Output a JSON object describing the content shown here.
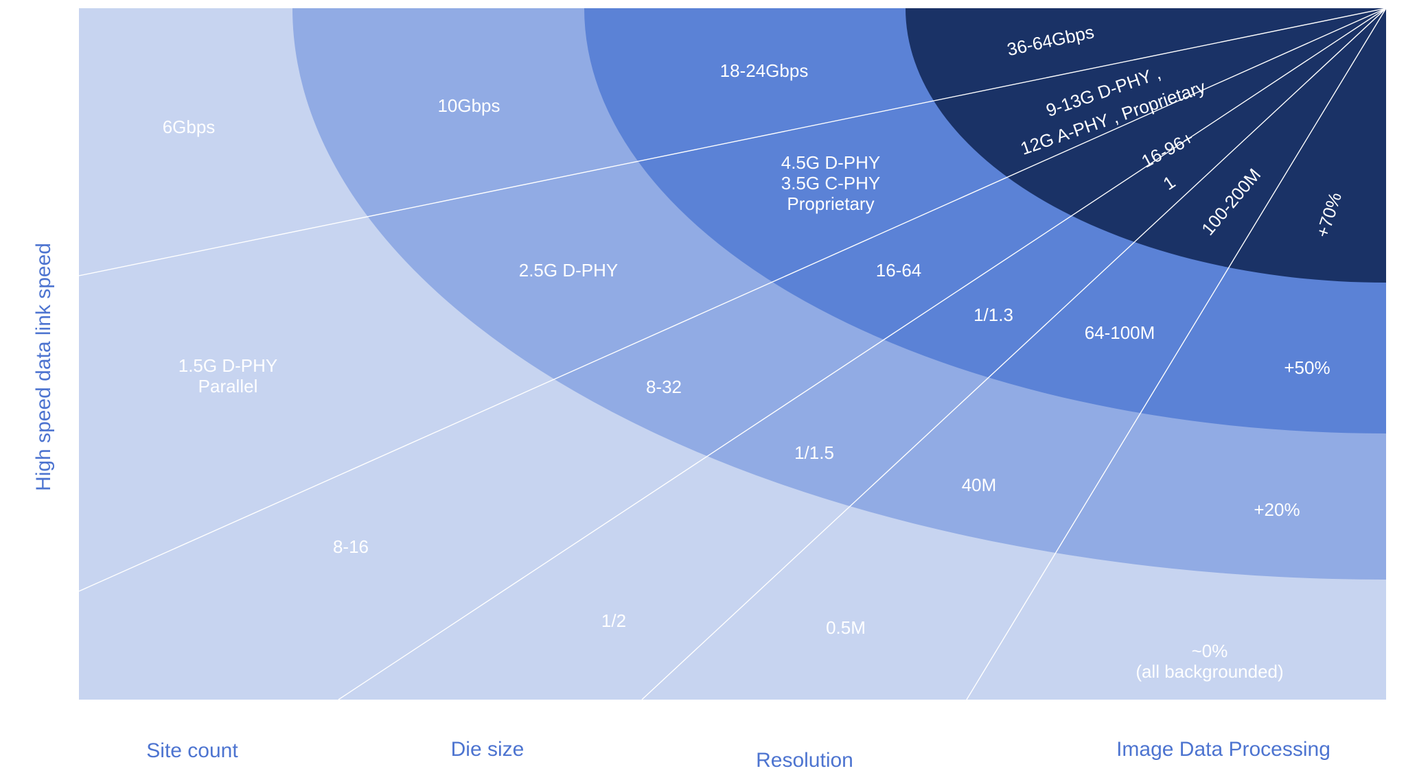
{
  "colors": {
    "ring0": "#c7d4f0",
    "ring1": "#91abe4",
    "ring2": "#5b82d6",
    "ring3": "#1a3266",
    "label": "#ffffff",
    "axis_label": "#4d74d0",
    "ray": "#ffffff"
  },
  "axis_labels": {
    "y": "High speed data link speed",
    "site_count": "Site count",
    "die_size": "Die size",
    "resolution": "Resolution",
    "image_processing": "Image Data Processing"
  },
  "rings": [
    {
      "level": 0,
      "link_speed": "6Gbps",
      "interface": [
        "1.5G D-PHY",
        "Parallel"
      ],
      "site_count": "8-16",
      "die_size": "1/2",
      "resolution": "0.5M",
      "image_processing": [
        "~0%",
        "(all backgrounded)"
      ]
    },
    {
      "level": 1,
      "link_speed": "10Gbps",
      "interface": [
        "2.5G D-PHY"
      ],
      "site_count": "8-32",
      "die_size": "1/1.5",
      "resolution": "40M",
      "image_processing": [
        "+20%"
      ]
    },
    {
      "level": 2,
      "link_speed": "18-24Gbps",
      "interface": [
        "4.5G D-PHY",
        "3.5G C-PHY",
        "Proprietary"
      ],
      "site_count": "16-64",
      "die_size": "1/1.3",
      "resolution": "64-100M",
      "image_processing": [
        "+50%"
      ]
    },
    {
      "level": 3,
      "link_speed": "36-64Gbps",
      "interface": [
        "9-13G D-PHY ,",
        "12G A-PHY , Proprietary"
      ],
      "site_count": "16-96+",
      "die_size": "1",
      "resolution": "100-200M",
      "image_processing": [
        "+70%"
      ]
    }
  ]
}
